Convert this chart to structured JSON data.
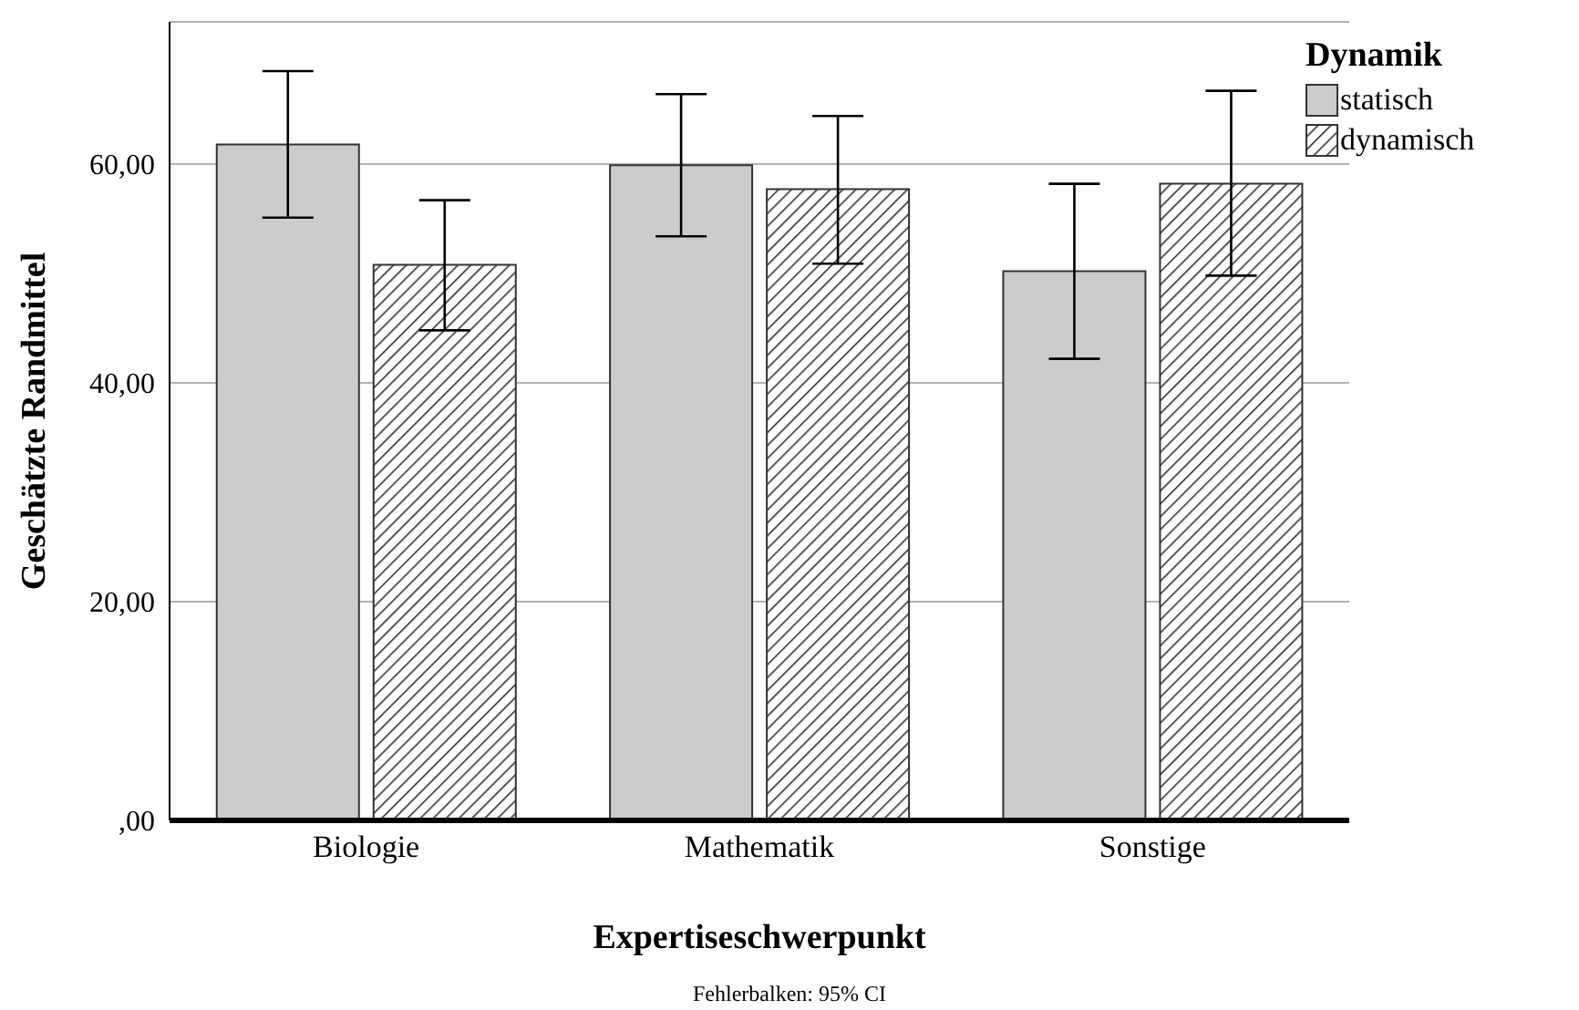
{
  "chart_data": {
    "type": "bar",
    "xlabel": "Expertiseschwerpunkt",
    "ylabel": "Geschätzte Randmittel",
    "legend_title": "Dynamik",
    "categories": [
      "Biologie",
      "Mathematik",
      "Sonstige"
    ],
    "series": [
      {
        "name": "statisch",
        "color": "#cccccc",
        "values": [
          61.8,
          59.9,
          50.2
        ],
        "errors": [
          [
            55.1,
            68.5
          ],
          [
            53.4,
            66.4
          ],
          [
            42.2,
            58.2
          ]
        ]
      },
      {
        "name": "dynamisch",
        "color": "#333333",
        "values": [
          50.8,
          57.7,
          58.2
        ],
        "errors": [
          [
            44.8,
            56.7
          ],
          [
            50.9,
            64.4
          ],
          [
            49.8,
            66.7
          ]
        ]
      }
    ],
    "ylim": [
      0,
      73
    ],
    "yticks": [
      {
        "value": 0,
        "label": ",00"
      },
      {
        "value": 20,
        "label": "20,00"
      },
      {
        "value": 40,
        "label": "40,00"
      },
      {
        "value": 60,
        "label": "60,00"
      }
    ],
    "grid": "y",
    "legend": "top right",
    "annotations": [
      "Fehlerbalken: 95% CI"
    ]
  }
}
